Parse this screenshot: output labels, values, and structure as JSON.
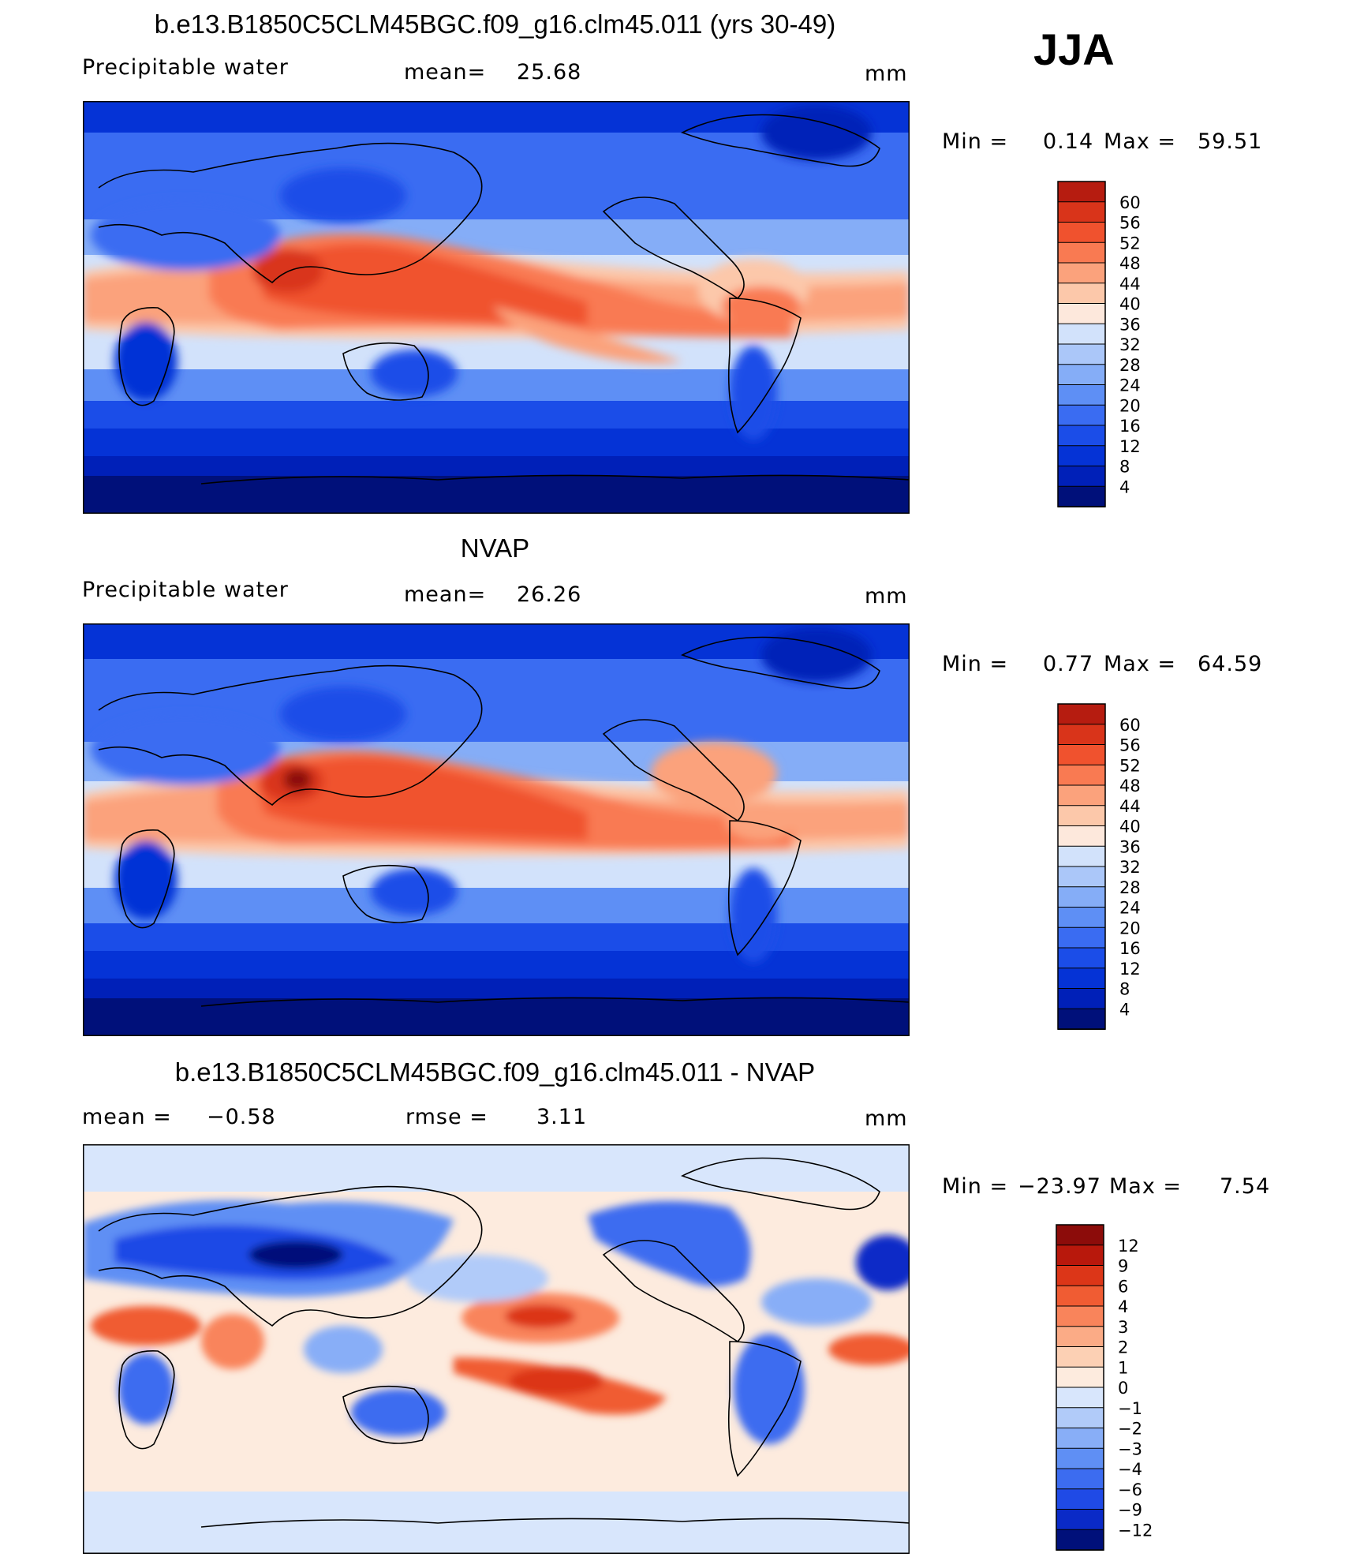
{
  "season": "JJA",
  "colors": {
    "abs_scale": [
      "#00107a",
      "#0020b8",
      "#0533d6",
      "#1b4de8",
      "#3a6cf2",
      "#5e8ff5",
      "#85adf7",
      "#abc7f9",
      "#d2e2fb",
      "#fde8dc",
      "#fcc8aa",
      "#fba27c",
      "#f97a52",
      "#f0522e",
      "#d9341a",
      "#b61c10",
      "#8c0c0a"
    ],
    "diff_scale": [
      "#00107a",
      "#0a2ac7",
      "#1f4ae6",
      "#3c6cf0",
      "#5f8ff4",
      "#88aef7",
      "#b1cbf9",
      "#d8e6fc",
      "#fdebde",
      "#fcd0b4",
      "#fbab86",
      "#f9845b",
      "#f05c33",
      "#dc3618",
      "#b8180c",
      "#8c0c0a"
    ]
  },
  "panels": [
    {
      "title": "b.e13.B1850C5CLM45BGC.f09_g16.clm45.011 (yrs 30-49)",
      "variable": "Precipitable water",
      "mean_label": "mean=",
      "mean_value": "25.68",
      "units": "mm",
      "min_label": "Min =",
      "min_value": "0.14",
      "max_label": "Max =",
      "max_value": "59.51",
      "ticks": [
        "60",
        "56",
        "52",
        "48",
        "44",
        "40",
        "36",
        "32",
        "28",
        "24",
        "20",
        "16",
        "12",
        "8",
        "4"
      ]
    },
    {
      "title": "NVAP",
      "variable": "Precipitable water",
      "mean_label": "mean=",
      "mean_value": "26.26",
      "units": "mm",
      "min_label": "Min =",
      "min_value": "0.77",
      "max_label": "Max =",
      "max_value": "64.59",
      "ticks": [
        "60",
        "56",
        "52",
        "48",
        "44",
        "40",
        "36",
        "32",
        "28",
        "24",
        "20",
        "16",
        "12",
        "8",
        "4"
      ]
    },
    {
      "title": "b.e13.B1850C5CLM45BGC.f09_g16.clm45.011 - NVAP",
      "mean_label": "mean =",
      "mean_value": "−0.58",
      "rmse_label": "rmse =",
      "rmse_value": "3.11",
      "units": "mm",
      "min_label": "Min =",
      "min_value": "−23.97",
      "max_label": "Max =",
      "max_value": "7.54",
      "ticks": [
        "12",
        "9",
        "6",
        "4",
        "3",
        "2",
        "1",
        "0",
        "−1",
        "−2",
        "−3",
        "−4",
        "−6",
        "−9",
        "−12"
      ]
    }
  ]
}
